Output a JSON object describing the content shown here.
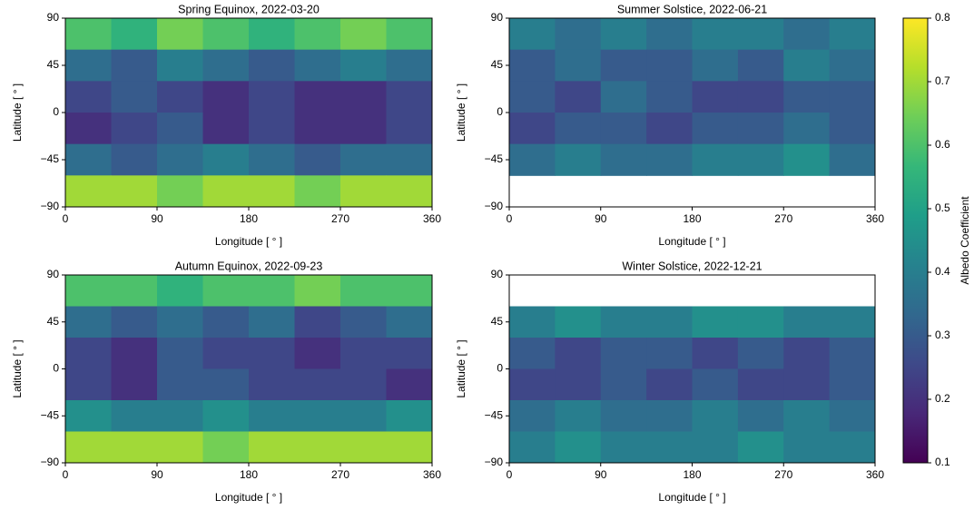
{
  "chart_data": [
    {
      "type": "heatmap",
      "title": "Spring Equinox, 2022-03-20",
      "x_label": "Longitude [ ° ]",
      "y_label": "Latitude [ ° ]",
      "xlim": [
        0,
        360
      ],
      "ylim": [
        -90,
        90
      ],
      "xticks": [
        0,
        90,
        180,
        270,
        360
      ],
      "yticks": [
        {
          "value": -90,
          "label": "−90"
        },
        {
          "value": -45,
          "label": "−45"
        },
        0,
        45,
        90
      ],
      "z": [
        [
          0.6,
          0.55,
          0.65,
          0.6,
          0.55,
          0.6,
          0.65,
          0.6
        ],
        [
          0.35,
          0.3,
          0.4,
          0.35,
          0.3,
          0.35,
          0.4,
          0.35
        ],
        [
          0.25,
          0.3,
          0.25,
          0.2,
          0.25,
          0.2,
          0.2,
          0.25
        ],
        [
          0.2,
          0.25,
          0.3,
          0.2,
          0.25,
          0.2,
          0.2,
          0.25
        ],
        [
          0.35,
          0.3,
          0.35,
          0.4,
          0.35,
          0.3,
          0.35,
          0.35
        ],
        [
          0.7,
          0.7,
          0.65,
          0.7,
          0.7,
          0.65,
          0.7,
          0.7
        ]
      ]
    },
    {
      "type": "heatmap",
      "title": "Summer Solstice, 2022-06-21",
      "x_label": "Longitude [ ° ]",
      "y_label": "Latitude [ ° ]",
      "xlim": [
        0,
        360
      ],
      "ylim": [
        -90,
        90
      ],
      "xticks": [
        0,
        90,
        180,
        270,
        360
      ],
      "yticks": [
        {
          "value": -90,
          "label": "−90"
        },
        {
          "value": -45,
          "label": "−45"
        },
        0,
        45,
        90
      ],
      "z": [
        [
          0.4,
          0.35,
          0.4,
          0.35,
          0.4,
          0.4,
          0.35,
          0.4
        ],
        [
          0.3,
          0.35,
          0.3,
          0.3,
          0.35,
          0.3,
          0.4,
          0.35
        ],
        [
          0.3,
          0.25,
          0.35,
          0.3,
          0.25,
          0.25,
          0.3,
          0.3
        ],
        [
          0.25,
          0.3,
          0.3,
          0.25,
          0.3,
          0.3,
          0.35,
          0.3
        ],
        [
          0.35,
          0.4,
          0.35,
          0.35,
          0.4,
          0.4,
          0.45,
          0.35
        ],
        [
          null,
          null,
          null,
          null,
          null,
          null,
          null,
          null
        ]
      ]
    },
    {
      "type": "heatmap",
      "title": "Autumn Equinox, 2022-09-23",
      "x_label": "Longitude [ ° ]",
      "y_label": "Latitude [ ° ]",
      "xlim": [
        0,
        360
      ],
      "ylim": [
        -90,
        90
      ],
      "xticks": [
        0,
        90,
        180,
        270,
        360
      ],
      "yticks": [
        {
          "value": -90,
          "label": "−90"
        },
        {
          "value": -45,
          "label": "−45"
        },
        0,
        45,
        90
      ],
      "z": [
        [
          0.6,
          0.6,
          0.55,
          0.6,
          0.6,
          0.65,
          0.6,
          0.6
        ],
        [
          0.35,
          0.3,
          0.35,
          0.3,
          0.35,
          0.25,
          0.3,
          0.35
        ],
        [
          0.25,
          0.2,
          0.3,
          0.25,
          0.25,
          0.2,
          0.25,
          0.25
        ],
        [
          0.25,
          0.2,
          0.3,
          0.3,
          0.25,
          0.25,
          0.25,
          0.2
        ],
        [
          0.45,
          0.4,
          0.4,
          0.45,
          0.4,
          0.4,
          0.4,
          0.45
        ],
        [
          0.7,
          0.7,
          0.7,
          0.65,
          0.7,
          0.7,
          0.7,
          0.7
        ]
      ]
    },
    {
      "type": "heatmap",
      "title": "Winter Solstice, 2022-12-21",
      "x_label": "Longitude [ ° ]",
      "y_label": "Latitude [ ° ]",
      "xlim": [
        0,
        360
      ],
      "ylim": [
        -90,
        90
      ],
      "xticks": [
        0,
        90,
        180,
        270,
        360
      ],
      "yticks": [
        {
          "value": -90,
          "label": "−90"
        },
        {
          "value": -45,
          "label": "−45"
        },
        0,
        45,
        90
      ],
      "z": [
        [
          null,
          null,
          null,
          null,
          null,
          null,
          null,
          null
        ],
        [
          0.4,
          0.45,
          0.4,
          0.4,
          0.45,
          0.45,
          0.4,
          0.4
        ],
        [
          0.3,
          0.25,
          0.3,
          0.3,
          0.25,
          0.3,
          0.25,
          0.3
        ],
        [
          0.25,
          0.25,
          0.3,
          0.25,
          0.3,
          0.25,
          0.25,
          0.3
        ],
        [
          0.35,
          0.4,
          0.35,
          0.35,
          0.4,
          0.35,
          0.4,
          0.35
        ],
        [
          0.4,
          0.45,
          0.4,
          0.4,
          0.4,
          0.45,
          0.4,
          0.4
        ]
      ]
    }
  ],
  "colorbar": {
    "label": "Albedo Coefficient",
    "colormap": "viridis",
    "zlim": [
      0.1,
      0.8
    ],
    "zticks": [
      0.1,
      0.2,
      0.3,
      0.4,
      0.5,
      0.6,
      0.7,
      0.8
    ]
  }
}
